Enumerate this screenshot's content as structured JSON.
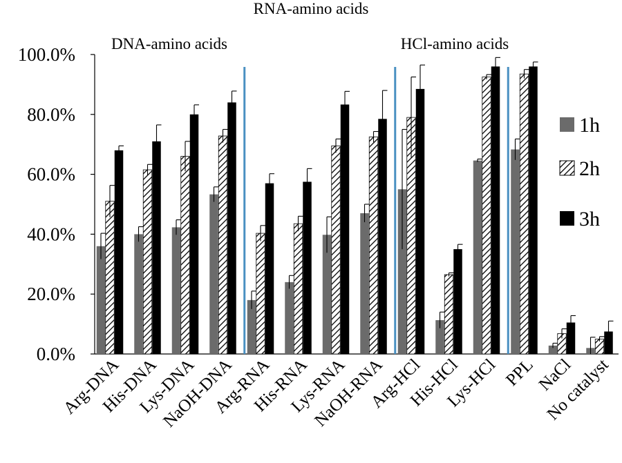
{
  "chart_data": {
    "type": "bar",
    "title": "",
    "xlabel": "",
    "ylabel": "",
    "ylim": [
      0,
      100
    ],
    "ytick_step": 20,
    "ytick_labels": [
      "0.0%",
      "20.0%",
      "40.0%",
      "60.0%",
      "80.0%",
      "100.0%"
    ],
    "grid": false,
    "categories": [
      "Arg-DNA",
      "His-DNA",
      "Lys-DNA",
      "NaOH-DNA",
      "Arg-RNA",
      "His-RNA",
      "Lys-RNA",
      "NaOH-RNA",
      "Arg-HCl",
      "His-HCl",
      "Lys-HCl",
      "PPL",
      "NaCl",
      "No catalyst"
    ],
    "series": [
      {
        "name": "1h",
        "color": "#6b6b6b",
        "pattern": "solid",
        "values": [
          36,
          40,
          42.3,
          53.3,
          18,
          24,
          39.8,
          47,
          55,
          11.3,
          64.6,
          68.3,
          2.8,
          2
        ],
        "errors": [
          4.3,
          2.5,
          2.5,
          2.5,
          3,
          2.2,
          6,
          3,
          20,
          2.7,
          0.5,
          3.5,
          0.8,
          3.6
        ]
      },
      {
        "name": "2h",
        "color": "#000000",
        "pattern": "hatch",
        "values": [
          51,
          61.5,
          66,
          72.8,
          40.3,
          43.5,
          69.5,
          72.5,
          79,
          26.5,
          92.5,
          93.5,
          6.8,
          5
        ],
        "errors": [
          5.3,
          1.8,
          5,
          2.2,
          2.6,
          2.5,
          2.3,
          1.8,
          13.5,
          0.6,
          0.8,
          1.5,
          1.6,
          0.8
        ]
      },
      {
        "name": "3h",
        "color": "#000000",
        "pattern": "solid",
        "values": [
          68,
          71,
          80,
          84,
          57,
          57.5,
          83.3,
          78.5,
          88.5,
          35,
          96,
          96,
          10.5,
          7.5
        ],
        "errors": [
          1.5,
          5.5,
          3.2,
          3.8,
          3.2,
          4.4,
          4.4,
          9.5,
          8,
          1.6,
          3,
          1.5,
          2.3,
          3.5
        ]
      }
    ],
    "group_labels": [
      {
        "text": "DNA-amino acids",
        "after_category": null
      },
      {
        "text": "RNA-amino acids",
        "after_category": 3
      },
      {
        "text": "HCl-amino acids",
        "after_category": 7
      }
    ],
    "separators_after_category": [
      3,
      7,
      10
    ],
    "separator_color": "#4a90c2",
    "legend_position": "right"
  }
}
